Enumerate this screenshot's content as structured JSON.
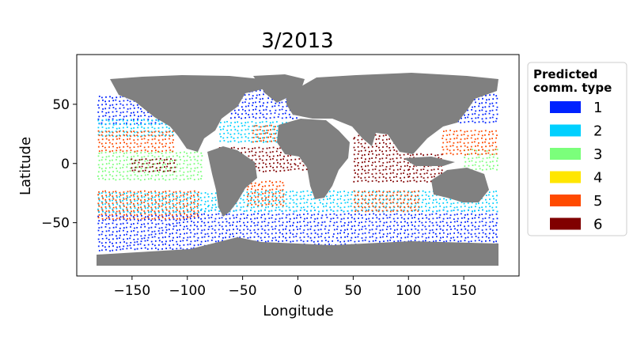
{
  "title": "3/2013",
  "xlabel": "Longitude",
  "ylabel": "Latitude",
  "legend": {
    "title_lines": [
      "Predicted",
      "comm. type"
    ],
    "placement": "outside-right",
    "items": [
      {
        "label": "1",
        "color": "#0022ff"
      },
      {
        "label": "2",
        "color": "#00d0ff"
      },
      {
        "label": "3",
        "color": "#7bff7b"
      },
      {
        "label": "4",
        "color": "#ffe600"
      },
      {
        "label": "5",
        "color": "#ff4a00"
      },
      {
        "label": "6",
        "color": "#800000"
      }
    ]
  },
  "land_color": "#808080",
  "chart_data": {
    "type": "scatter",
    "title": "3/2013",
    "xlabel": "Longitude",
    "ylabel": "Latitude",
    "xlim": [
      -200,
      200
    ],
    "ylim": [
      -95,
      92
    ],
    "xticks": [
      -150,
      -100,
      -50,
      0,
      50,
      100,
      150
    ],
    "xtick_labels": [
      "−150",
      "−100",
      "−50",
      "0",
      "50",
      "100",
      "150"
    ],
    "yticks": [
      -50,
      0,
      50
    ],
    "ytick_labels": [
      "−50",
      "0",
      "50"
    ],
    "grid": false,
    "series": [
      {
        "name": "1",
        "color": "#0022ff"
      },
      {
        "name": "2",
        "color": "#00d0ff"
      },
      {
        "name": "3",
        "color": "#7bff7b"
      },
      {
        "name": "4",
        "color": "#ffe600"
      },
      {
        "name": "5",
        "color": "#ff4a00"
      },
      {
        "name": "6",
        "color": "#800000"
      }
    ],
    "regions": [
      {
        "series": "1",
        "lon": [
          -180,
          180
        ],
        "lat": [
          -72,
          -38
        ]
      },
      {
        "series": "1",
        "lon": [
          -180,
          -120
        ],
        "lat": [
          35,
          60
        ]
      },
      {
        "series": "1",
        "lon": [
          -60,
          0
        ],
        "lat": [
          40,
          72
        ]
      },
      {
        "series": "1",
        "lon": [
          140,
          180
        ],
        "lat": [
          35,
          60
        ]
      },
      {
        "series": "2",
        "lon": [
          -180,
          180
        ],
        "lat": [
          -40,
          -22
        ]
      },
      {
        "series": "2",
        "lon": [
          -180,
          -110
        ],
        "lat": [
          25,
          38
        ]
      },
      {
        "series": "2",
        "lon": [
          -70,
          -10
        ],
        "lat": [
          20,
          38
        ]
      },
      {
        "series": "3",
        "lon": [
          -180,
          -85
        ],
        "lat": [
          -12,
          12
        ]
      },
      {
        "series": "3",
        "lon": [
          150,
          180
        ],
        "lat": [
          -5,
          12
        ]
      },
      {
        "series": "5",
        "lon": [
          -180,
          -90
        ],
        "lat": [
          -45,
          -22
        ]
      },
      {
        "series": "5",
        "lon": [
          -180,
          -110
        ],
        "lat": [
          12,
          30
        ]
      },
      {
        "series": "5",
        "lon": [
          -45,
          -10
        ],
        "lat": [
          -35,
          -15
        ]
      },
      {
        "series": "5",
        "lon": [
          50,
          110
        ],
        "lat": [
          -40,
          -22
        ]
      },
      {
        "series": "5",
        "lon": [
          130,
          180
        ],
        "lat": [
          8,
          30
        ]
      },
      {
        "series": "5",
        "lon": [
          -40,
          -20
        ],
        "lat": [
          20,
          35
        ]
      },
      {
        "series": "6",
        "lon": [
          -70,
          10
        ],
        "lat": [
          -5,
          15
        ]
      },
      {
        "series": "6",
        "lon": [
          50,
          100
        ],
        "lat": [
          -15,
          25
        ]
      },
      {
        "series": "6",
        "lon": [
          100,
          130
        ],
        "lat": [
          -15,
          10
        ]
      },
      {
        "series": "6",
        "lon": [
          -150,
          -110
        ],
        "lat": [
          -5,
          5
        ]
      }
    ]
  }
}
